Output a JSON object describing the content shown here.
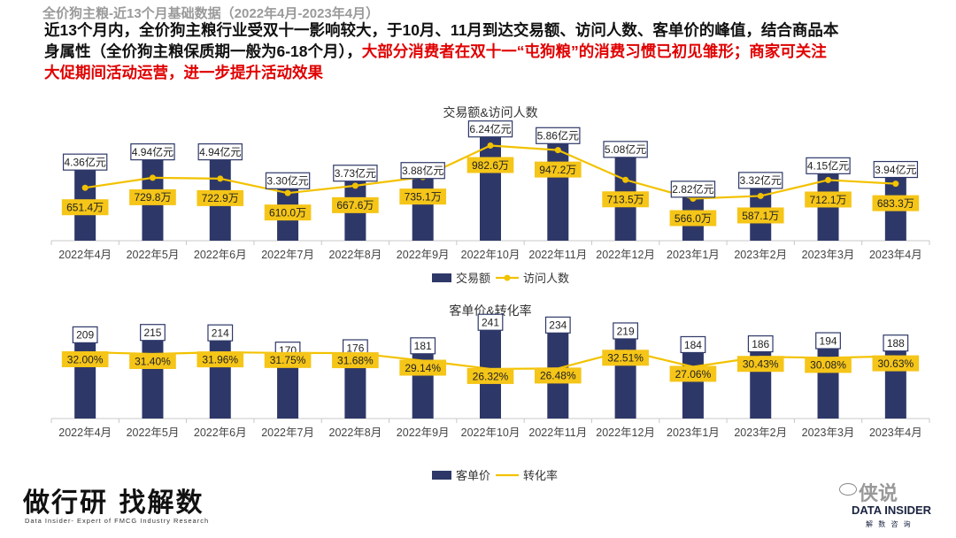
{
  "page_title": "全价狗主粮-近13个月基础数据（2022年4月-2023年4月）",
  "description": {
    "normal": "近13个月内，全价狗主粮行业受双十一影响较大，于10月、11月到达交易额、访问人数、客单价的峰值，结合商品本身属性（全价狗主粮保质期一般为6-18个月），",
    "highlight": "大部分消费者在双十一“屯狗粮”的消费习惯已初见雏形；商家可关注大促期间活动运营，进一步提升活动效果"
  },
  "colors": {
    "bar": "#2e3868",
    "line": "#f2c200",
    "label_bg": "#f5c518",
    "axis": "#c8c8c8"
  },
  "chart_data": [
    {
      "type": "bar",
      "title": "交易额&访问人数",
      "categories": [
        "2022年4月",
        "2022年5月",
        "2022年6月",
        "2022年7月",
        "2022年8月",
        "2022年9月",
        "2022年10月",
        "2022年11月",
        "2022年12月",
        "2023年1月",
        "2023年2月",
        "2023年3月",
        "2023年4月"
      ],
      "series": [
        {
          "name": "交易额",
          "kind": "bar",
          "unit": "亿元",
          "values": [
            4.36,
            4.94,
            4.94,
            3.3,
            3.73,
            3.88,
            6.24,
            5.86,
            5.08,
            2.82,
            3.32,
            4.15,
            3.94
          ],
          "labels": [
            "4.36亿元",
            "4.94亿元",
            "4.94亿元",
            "3.30亿元",
            "3.73亿元",
            "3.88亿元",
            "6.24亿元",
            "5.86亿元",
            "5.08亿元",
            "2.82亿元",
            "3.32亿元",
            "4.15亿元",
            "3.94亿元"
          ]
        },
        {
          "name": "访问人数",
          "kind": "line",
          "unit": "万",
          "values": [
            651.4,
            729.8,
            722.9,
            610.0,
            667.6,
            735.1,
            982.6,
            947.2,
            713.5,
            566.0,
            587.1,
            712.1,
            683.3
          ],
          "labels": [
            "651.4万",
            "729.8万",
            "722.9万",
            "610.0万",
            "667.6万",
            "735.1万",
            "982.6万",
            "947.2万",
            "713.5万",
            "566.0万",
            "587.1万",
            "712.1万",
            "683.3万"
          ]
        }
      ],
      "legend": "bottom"
    },
    {
      "type": "bar",
      "title": "客单价&转化率",
      "categories": [
        "2022年4月",
        "2022年5月",
        "2022年6月",
        "2022年7月",
        "2022年8月",
        "2022年9月",
        "2022年10月",
        "2022年11月",
        "2022年12月",
        "2023年1月",
        "2023年2月",
        "2023年3月",
        "2023年4月"
      ],
      "series": [
        {
          "name": "客单价",
          "kind": "bar",
          "values": [
            209,
            215,
            214,
            170,
            176,
            181,
            241,
            234,
            219,
            184,
            186,
            194,
            188
          ],
          "labels": [
            "209",
            "215",
            "214",
            "170",
            "176",
            "181",
            "241",
            "234",
            "219",
            "184",
            "186",
            "194",
            "188"
          ]
        },
        {
          "name": "转化率",
          "kind": "line",
          "unit": "%",
          "values": [
            32.0,
            31.4,
            31.96,
            31.75,
            31.68,
            29.14,
            26.32,
            26.48,
            32.51,
            27.06,
            30.43,
            30.08,
            30.63
          ],
          "labels": [
            "32.00%",
            "31.40%",
            "31.96%",
            "31.75%",
            "31.68%",
            "29.14%",
            "26.32%",
            "26.48%",
            "32.51%",
            "27.06%",
            "30.43%",
            "30.08%",
            "30.63%"
          ]
        }
      ],
      "legend": "bottom"
    }
  ],
  "branding": {
    "logo_text": "做行研 找解数",
    "logo_subtitle": "Data Insider- Expert of FMCG Industry Research",
    "watermark": "侠说",
    "company": "DATA INSIDER",
    "company_cn": "解 数 咨 询"
  }
}
